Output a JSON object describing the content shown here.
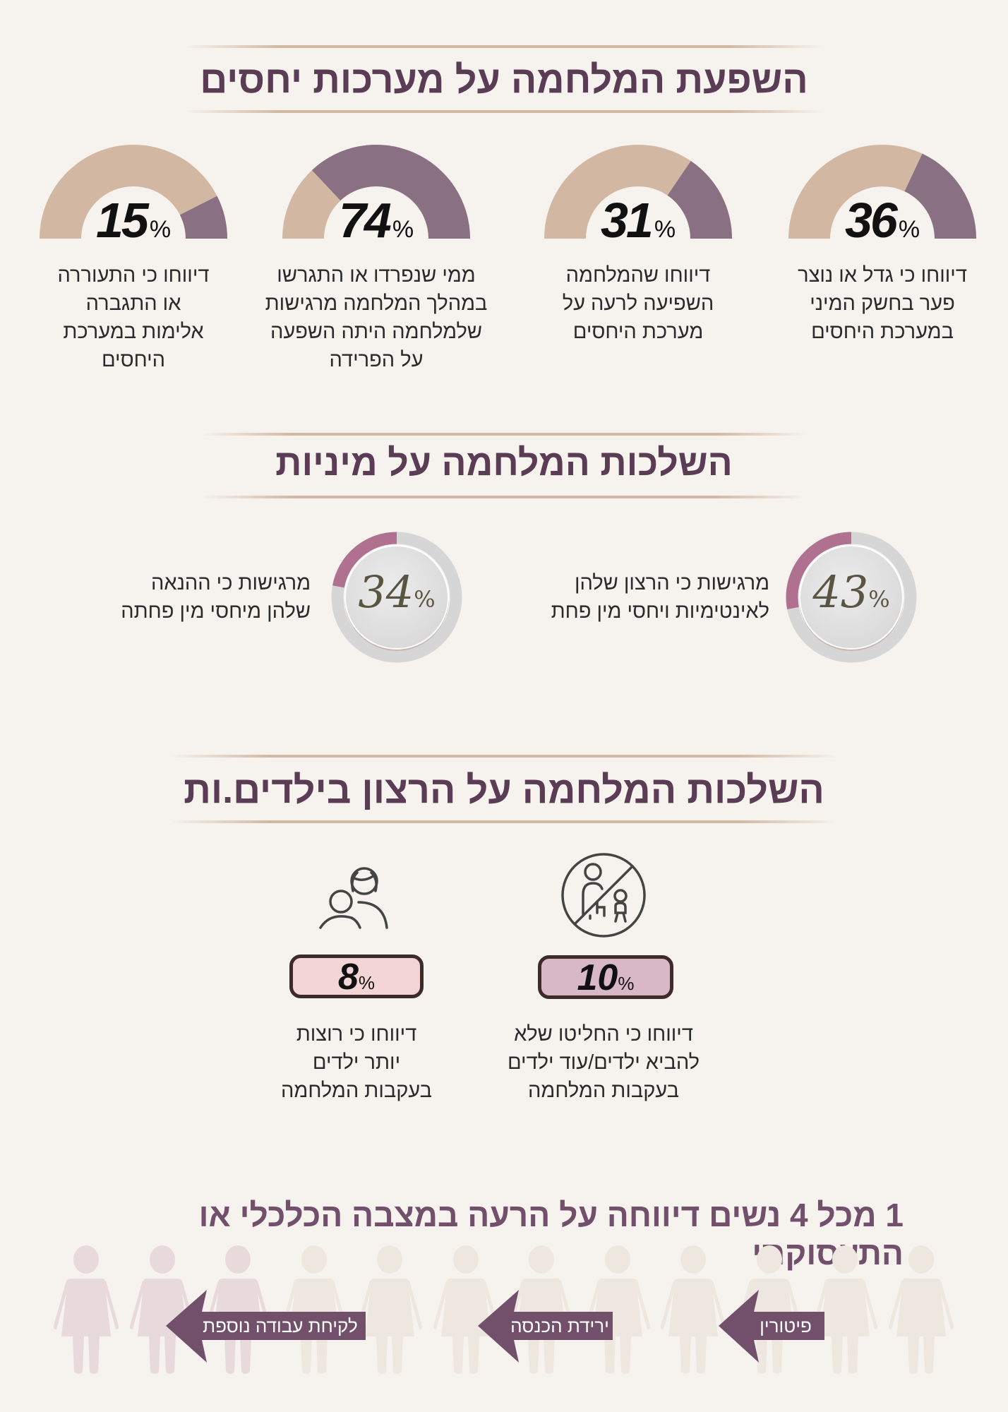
{
  "colors": {
    "tan": "#d2b8a3",
    "purple": "#8a7083",
    "heading": "#5a3d54",
    "ring_grey": "#d6d6d6",
    "ring_accent": "#b07090",
    "box_light": "#f3d5d5",
    "box_dark": "#d9b8c6",
    "arrow": "#72506b",
    "figure_highlight": "#e8dadb",
    "figure_muted": "#eee7e0"
  },
  "section1": {
    "title": "השפעת המלחמה על מערכות יחסים",
    "gauges": [
      {
        "value": 36,
        "label": "36",
        "percent": "%",
        "text": "דיווחו כי גדל או נוצר\nפער בחשק המיני\nבמערכת היחסים"
      },
      {
        "value": 31,
        "label": "31",
        "percent": "%",
        "text": "דיווחו שהמלחמה\nהשפיעה לרעה על\nמערכת היחסים"
      },
      {
        "value": 74,
        "label": "74",
        "percent": "%",
        "text": "ממי שנפרדו או התגרשו\nבמהלך המלחמה מרגישות\nשלמלחמה היתה השפעה\nעל הפרידה"
      },
      {
        "value": 15,
        "label": "15",
        "percent": "%",
        "text": "דיווחו כי התעוררה\nאו התגברה\nאלימות במערכת\nהיחסים"
      }
    ]
  },
  "section2": {
    "title": "השלכות המלחמה על מיניות",
    "rings": [
      {
        "value": 43,
        "label": "43",
        "percent": "%",
        "text": "מרגישות כי הרצון שלהן\nלאינטימיות ויחסי מין פחת"
      },
      {
        "value": 34,
        "label": "34",
        "percent": "%",
        "text": "מרגישות כי ההנאה\nשלהן מיחסי מין פחתה"
      }
    ]
  },
  "section3": {
    "title": "השלכות המלחמה על הרצון בילדים.ות",
    "items": [
      {
        "value": 10,
        "label": "10",
        "percent": "%",
        "icon": "no-children-icon",
        "text": "דיווחו כי החליטו שלא\nלהביא ילדים/עוד ילדים\nבעקבות המלחמה"
      },
      {
        "value": 8,
        "label": "8",
        "percent": "%",
        "icon": "parent-child-icon",
        "text": "דיווחו כי רוצות\nיותר ילדים\nבעקבות המלחמה"
      }
    ]
  },
  "section4": {
    "title": "1 מכל 4 נשים דיווחה על הרעה במצבה הכלכלי או התעסוקתי",
    "figures_total": 12,
    "figures_highlighted": 3,
    "arrows": [
      "פיטורין",
      "ירידת הכנסה",
      "לקיחת עבודה נוספת"
    ]
  }
}
